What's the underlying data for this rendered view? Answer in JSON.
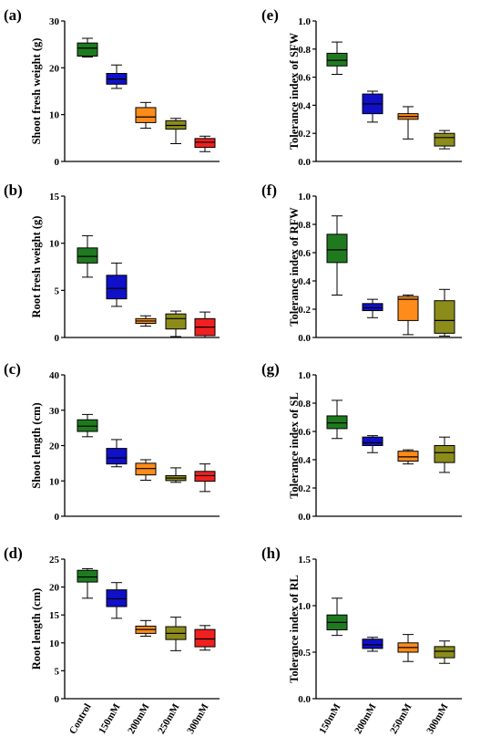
{
  "chart_data": [
    {
      "panel": "(a)",
      "type": "boxplot",
      "ylabel": "Shoot fresh weight (g)",
      "ylim": [
        0,
        30
      ],
      "yticks": [
        "0",
        "10",
        "20",
        "30"
      ],
      "categories": [],
      "boxes": [
        {
          "min": 22.3,
          "q1": 22.5,
          "median": 24.2,
          "q3": 25.3,
          "max": 26.3,
          "color": "#1f7a1f"
        },
        {
          "min": 15.6,
          "q1": 16.5,
          "median": 17.6,
          "q3": 18.8,
          "max": 20.6,
          "color": "#1010c8"
        },
        {
          "min": 7.1,
          "q1": 8.3,
          "median": 9.5,
          "q3": 11.5,
          "max": 12.6,
          "color": "#ff8c1a"
        },
        {
          "min": 3.8,
          "q1": 6.9,
          "median": 7.7,
          "q3": 8.7,
          "max": 9.2,
          "color": "#8c8c1a"
        },
        {
          "min": 2.1,
          "q1": 3.0,
          "median": 4.1,
          "q3": 4.9,
          "max": 5.4,
          "color": "#f02020"
        }
      ]
    },
    {
      "panel": "(b)",
      "type": "boxplot",
      "ylabel": "Root fresh weight (g)",
      "ylim": [
        0,
        15
      ],
      "yticks": [
        "0",
        "5",
        "10",
        "15"
      ],
      "categories": [],
      "boxes": [
        {
          "min": 6.4,
          "q1": 7.9,
          "median": 8.6,
          "q3": 9.5,
          "max": 10.8,
          "color": "#1f7a1f"
        },
        {
          "min": 3.3,
          "q1": 4.1,
          "median": 5.2,
          "q3": 6.6,
          "max": 7.9,
          "color": "#1010c8"
        },
        {
          "min": 1.2,
          "q1": 1.5,
          "median": 1.75,
          "q3": 2.0,
          "max": 2.3,
          "color": "#ff8c1a"
        },
        {
          "min": 0.1,
          "q1": 0.9,
          "median": 2.0,
          "q3": 2.5,
          "max": 2.8,
          "color": "#8c8c1a"
        },
        {
          "min": 0.0,
          "q1": 0.2,
          "median": 1.1,
          "q3": 2.0,
          "max": 2.7,
          "color": "#f02020"
        }
      ]
    },
    {
      "panel": "(c)",
      "type": "boxplot",
      "ylabel": "Shoot length (cm)",
      "ylim": [
        0,
        40
      ],
      "yticks": [
        "0",
        "10",
        "20",
        "30",
        "40"
      ],
      "categories": [],
      "boxes": [
        {
          "min": 22.5,
          "q1": 24.0,
          "median": 25.5,
          "q3": 27.3,
          "max": 28.8,
          "color": "#1f7a1f"
        },
        {
          "min": 14.0,
          "q1": 14.8,
          "median": 16.5,
          "q3": 19.2,
          "max": 21.7,
          "color": "#1010c8"
        },
        {
          "min": 10.2,
          "q1": 11.7,
          "median": 13.5,
          "q3": 15.0,
          "max": 16.0,
          "color": "#ff8c1a"
        },
        {
          "min": 9.6,
          "q1": 10.1,
          "median": 10.8,
          "q3": 11.5,
          "max": 13.7,
          "color": "#8c8c1a"
        },
        {
          "min": 7.0,
          "q1": 9.9,
          "median": 11.5,
          "q3": 12.7,
          "max": 14.8,
          "color": "#f02020"
        }
      ]
    },
    {
      "panel": "(d)",
      "type": "boxplot",
      "ylabel": "Root length (cm)",
      "ylim": [
        0,
        25
      ],
      "yticks": [
        "0",
        "5",
        "10",
        "15",
        "20",
        "25"
      ],
      "categories": [
        "Control",
        "150mM",
        "200mM",
        "250mM",
        "300mM"
      ],
      "boxes": [
        {
          "min": 18.0,
          "q1": 20.9,
          "median": 21.8,
          "q3": 23.0,
          "max": 23.3,
          "color": "#1f7a1f"
        },
        {
          "min": 14.4,
          "q1": 16.5,
          "median": 17.9,
          "q3": 19.5,
          "max": 20.8,
          "color": "#1010c8"
        },
        {
          "min": 11.2,
          "q1": 11.7,
          "median": 12.4,
          "q3": 13.0,
          "max": 14.0,
          "color": "#ff8c1a"
        },
        {
          "min": 8.6,
          "q1": 10.6,
          "median": 11.7,
          "q3": 12.9,
          "max": 14.6,
          "color": "#8c8c1a"
        },
        {
          "min": 8.7,
          "q1": 9.3,
          "median": 10.7,
          "q3": 12.4,
          "max": 13.1,
          "color": "#f02020"
        }
      ]
    },
    {
      "panel": "(e)",
      "type": "boxplot",
      "ylabel": "Tolerance index of SFW",
      "ylim": [
        0,
        1.0
      ],
      "yticks": [
        "0.0",
        "0.2",
        "0.4",
        "0.6",
        "0.8",
        "1.0"
      ],
      "categories": [],
      "boxes": [
        {
          "min": 0.62,
          "q1": 0.68,
          "median": 0.72,
          "q3": 0.77,
          "max": 0.85,
          "color": "#1f7a1f"
        },
        {
          "min": 0.28,
          "q1": 0.34,
          "median": 0.41,
          "q3": 0.48,
          "max": 0.5,
          "color": "#1010c8"
        },
        {
          "min": 0.16,
          "q1": 0.3,
          "median": 0.32,
          "q3": 0.34,
          "max": 0.39,
          "color": "#ff8c1a"
        },
        {
          "min": 0.09,
          "q1": 0.11,
          "median": 0.17,
          "q3": 0.2,
          "max": 0.22,
          "color": "#8c8c1a"
        }
      ]
    },
    {
      "panel": "(f)",
      "type": "boxplot",
      "ylabel": "Tolerance index of RFW",
      "ylim": [
        0,
        1.0
      ],
      "yticks": [
        "0.0",
        "0.2",
        "0.4",
        "0.6",
        "0.8",
        "1.0"
      ],
      "categories": [],
      "boxes": [
        {
          "min": 0.3,
          "q1": 0.53,
          "median": 0.62,
          "q3": 0.73,
          "max": 0.86,
          "color": "#1f7a1f"
        },
        {
          "min": 0.14,
          "q1": 0.19,
          "median": 0.21,
          "q3": 0.24,
          "max": 0.27,
          "color": "#1010c8"
        },
        {
          "min": 0.02,
          "q1": 0.12,
          "median": 0.27,
          "q3": 0.29,
          "max": 0.3,
          "color": "#ff8c1a"
        },
        {
          "min": 0.01,
          "q1": 0.03,
          "median": 0.12,
          "q3": 0.26,
          "max": 0.34,
          "color": "#8c8c1a"
        }
      ]
    },
    {
      "panel": "(g)",
      "type": "boxplot",
      "ylabel": "Tolerance index of SL",
      "ylim": [
        0,
        1.0
      ],
      "yticks": [
        "0.0",
        "0.2",
        "0.4",
        "0.6",
        "0.8",
        "1.0"
      ],
      "categories": [],
      "boxes": [
        {
          "min": 0.55,
          "q1": 0.62,
          "median": 0.66,
          "q3": 0.71,
          "max": 0.82,
          "color": "#1f7a1f"
        },
        {
          "min": 0.45,
          "q1": 0.5,
          "median": 0.52,
          "q3": 0.56,
          "max": 0.57,
          "color": "#1010c8"
        },
        {
          "min": 0.37,
          "q1": 0.39,
          "median": 0.42,
          "q3": 0.46,
          "max": 0.47,
          "color": "#ff8c1a"
        },
        {
          "min": 0.31,
          "q1": 0.38,
          "median": 0.45,
          "q3": 0.5,
          "max": 0.56,
          "color": "#8c8c1a"
        }
      ]
    },
    {
      "panel": "(h)",
      "type": "boxplot",
      "ylabel": "Tolerance index of RL",
      "ylim": [
        0,
        1.5
      ],
      "yticks": [
        "0.0",
        "0.5",
        "1.0",
        "1.5"
      ],
      "categories": [
        "150mM",
        "200mM",
        "250mM",
        "300mM"
      ],
      "boxes": [
        {
          "min": 0.68,
          "q1": 0.74,
          "median": 0.82,
          "q3": 0.9,
          "max": 1.08,
          "color": "#1f7a1f"
        },
        {
          "min": 0.51,
          "q1": 0.54,
          "median": 0.58,
          "q3": 0.64,
          "max": 0.66,
          "color": "#1010c8"
        },
        {
          "min": 0.4,
          "q1": 0.5,
          "median": 0.55,
          "q3": 0.6,
          "max": 0.69,
          "color": "#ff8c1a"
        },
        {
          "min": 0.38,
          "q1": 0.44,
          "median": 0.51,
          "q3": 0.56,
          "max": 0.62,
          "color": "#8c8c1a"
        }
      ]
    }
  ]
}
